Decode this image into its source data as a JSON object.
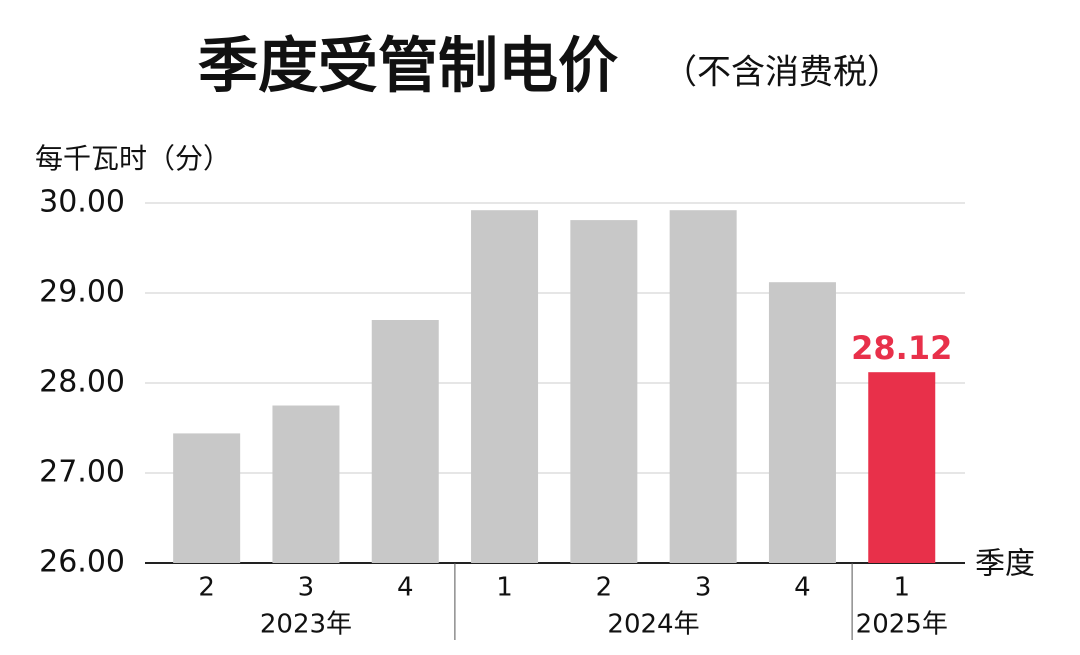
{
  "chart_data": {
    "type": "bar",
    "title": "季度受管制电价",
    "subtitle": "（不含消费税）",
    "y_label": "每千瓦时（分）",
    "x_label": "季度",
    "groups": [
      {
        "label": "2023年",
        "categories": [
          "2",
          "3",
          "4"
        ]
      },
      {
        "label": "2024年",
        "categories": [
          "1",
          "2",
          "3",
          "4"
        ]
      },
      {
        "label": "2025年",
        "categories": [
          "1"
        ]
      }
    ],
    "values": [
      27.44,
      27.75,
      28.7,
      29.92,
      29.81,
      29.92,
      29.12,
      28.12
    ],
    "value_labels": [
      null,
      null,
      null,
      null,
      null,
      null,
      null,
      "28.12"
    ],
    "colors": [
      "#c8c8c8",
      "#c8c8c8",
      "#c8c8c8",
      "#c8c8c8",
      "#c8c8c8",
      "#c8c8c8",
      "#c8c8c8",
      "#e8304a"
    ],
    "ylim": [
      26,
      30
    ],
    "yticks": [
      {
        "value": 26,
        "label": "26.00"
      },
      {
        "value": 27,
        "label": "27.00"
      },
      {
        "value": 28,
        "label": "28.00"
      },
      {
        "value": 29,
        "label": "29.00"
      },
      {
        "value": 30,
        "label": "30.00"
      }
    ],
    "grid": true
  }
}
